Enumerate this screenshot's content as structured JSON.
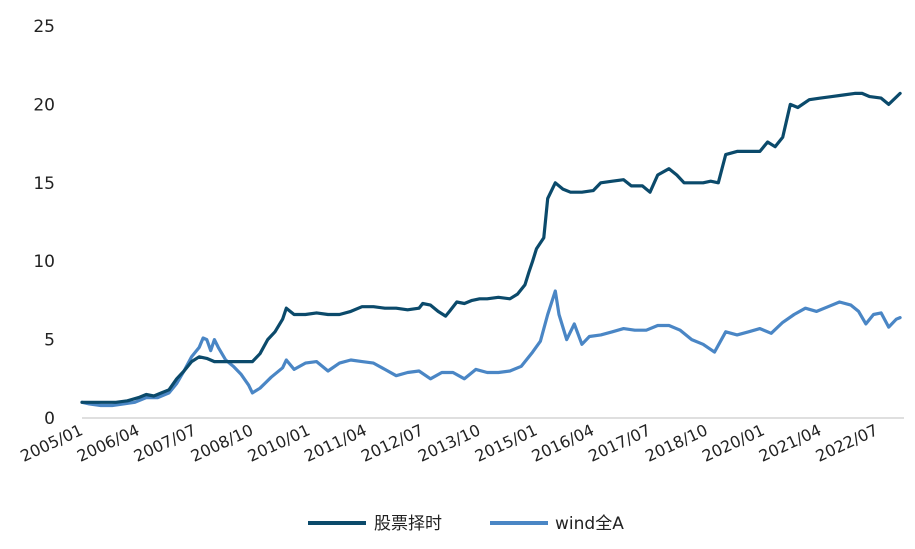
{
  "chart_data": {
    "type": "line",
    "title": "",
    "xlabel": "",
    "ylabel": "",
    "ylim": [
      0,
      25
    ],
    "yticks": [
      "0",
      "5",
      "10",
      "15",
      "20",
      "25"
    ],
    "xtick_labels": [
      "2005/01",
      "2006/04",
      "2007/07",
      "2008/10",
      "2010/01",
      "2011/04",
      "2012/07",
      "2013/10",
      "2015/01",
      "2016/04",
      "2017/07",
      "2018/10",
      "2020/01",
      "2021/04",
      "2022/07"
    ],
    "legend_position": "bottom",
    "grid": false,
    "series": [
      {
        "name": "股票择时",
        "color": "#0b4a6b",
        "points": [
          [
            "2005-01",
            1.0
          ],
          [
            "2005-06",
            1.0
          ],
          [
            "2005-10",
            1.0
          ],
          [
            "2006-01",
            1.1
          ],
          [
            "2006-04",
            1.3
          ],
          [
            "2006-06",
            1.5
          ],
          [
            "2006-08",
            1.4
          ],
          [
            "2006-10",
            1.6
          ],
          [
            "2006-12",
            1.8
          ],
          [
            "2007-02",
            2.5
          ],
          [
            "2007-04",
            3.0
          ],
          [
            "2007-06",
            3.6
          ],
          [
            "2007-08",
            3.9
          ],
          [
            "2007-10",
            3.8
          ],
          [
            "2007-12",
            3.6
          ],
          [
            "2008-02",
            3.6
          ],
          [
            "2008-05",
            3.6
          ],
          [
            "2008-08",
            3.6
          ],
          [
            "2008-10",
            3.6
          ],
          [
            "2008-12",
            4.1
          ],
          [
            "2009-02",
            5.0
          ],
          [
            "2009-04",
            5.5
          ],
          [
            "2009-06",
            6.3
          ],
          [
            "2009-07",
            7.0
          ],
          [
            "2009-09",
            6.6
          ],
          [
            "2009-12",
            6.6
          ],
          [
            "2010-03",
            6.7
          ],
          [
            "2010-06",
            6.6
          ],
          [
            "2010-09",
            6.6
          ],
          [
            "2010-12",
            6.8
          ],
          [
            "2011-03",
            7.1
          ],
          [
            "2011-06",
            7.1
          ],
          [
            "2011-09",
            7.0
          ],
          [
            "2011-12",
            7.0
          ],
          [
            "2012-03",
            6.9
          ],
          [
            "2012-06",
            7.0
          ],
          [
            "2012-07",
            7.3
          ],
          [
            "2012-09",
            7.2
          ],
          [
            "2012-11",
            6.8
          ],
          [
            "2013-01",
            6.5
          ],
          [
            "2013-02",
            6.8
          ],
          [
            "2013-04",
            7.4
          ],
          [
            "2013-06",
            7.3
          ],
          [
            "2013-08",
            7.5
          ],
          [
            "2013-10",
            7.6
          ],
          [
            "2013-12",
            7.6
          ],
          [
            "2014-03",
            7.7
          ],
          [
            "2014-06",
            7.6
          ],
          [
            "2014-08",
            7.9
          ],
          [
            "2014-10",
            8.5
          ],
          [
            "2014-11",
            9.3
          ],
          [
            "2014-12",
            10.0
          ],
          [
            "2015-01",
            10.8
          ],
          [
            "2015-03",
            11.5
          ],
          [
            "2015-04",
            14.0
          ],
          [
            "2015-06",
            15.0
          ],
          [
            "2015-08",
            14.6
          ],
          [
            "2015-10",
            14.4
          ],
          [
            "2016-01",
            14.4
          ],
          [
            "2016-04",
            14.5
          ],
          [
            "2016-06",
            15.0
          ],
          [
            "2016-09",
            15.1
          ],
          [
            "2016-12",
            15.2
          ],
          [
            "2017-02",
            14.8
          ],
          [
            "2017-05",
            14.8
          ],
          [
            "2017-07",
            14.4
          ],
          [
            "2017-09",
            15.5
          ],
          [
            "2017-12",
            15.9
          ],
          [
            "2018-02",
            15.5
          ],
          [
            "2018-04",
            15.0
          ],
          [
            "2018-07",
            15.0
          ],
          [
            "2018-09",
            15.0
          ],
          [
            "2018-11",
            15.1
          ],
          [
            "2019-01",
            15.0
          ],
          [
            "2019-03",
            16.8
          ],
          [
            "2019-06",
            17.0
          ],
          [
            "2019-09",
            17.0
          ],
          [
            "2019-12",
            17.0
          ],
          [
            "2020-02",
            17.6
          ],
          [
            "2020-04",
            17.3
          ],
          [
            "2020-06",
            17.9
          ],
          [
            "2020-08",
            20.0
          ],
          [
            "2020-10",
            19.8
          ],
          [
            "2021-01",
            20.3
          ],
          [
            "2021-04",
            20.4
          ],
          [
            "2021-07",
            20.5
          ],
          [
            "2021-10",
            20.6
          ],
          [
            "2022-01",
            20.7
          ],
          [
            "2022-03",
            20.7
          ],
          [
            "2022-05",
            20.5
          ],
          [
            "2022-08",
            20.4
          ],
          [
            "2022-10",
            20.0
          ],
          [
            "2023-01",
            20.7
          ]
        ]
      },
      {
        "name": "wind全A",
        "color": "#4a86c5",
        "points": [
          [
            "2005-01",
            1.0
          ],
          [
            "2005-03",
            0.9
          ],
          [
            "2005-06",
            0.8
          ],
          [
            "2005-09",
            0.8
          ],
          [
            "2005-12",
            0.9
          ],
          [
            "2006-03",
            1.0
          ],
          [
            "2006-06",
            1.3
          ],
          [
            "2006-09",
            1.3
          ],
          [
            "2006-12",
            1.6
          ],
          [
            "2007-02",
            2.2
          ],
          [
            "2007-04",
            3.0
          ],
          [
            "2007-06",
            3.9
          ],
          [
            "2007-08",
            4.5
          ],
          [
            "2007-09",
            5.1
          ],
          [
            "2007-10",
            5.0
          ],
          [
            "2007-11",
            4.3
          ],
          [
            "2007-12",
            5.0
          ],
          [
            "2008-01",
            4.5
          ],
          [
            "2008-03",
            3.7
          ],
          [
            "2008-05",
            3.3
          ],
          [
            "2008-07",
            2.8
          ],
          [
            "2008-09",
            2.1
          ],
          [
            "2008-10",
            1.6
          ],
          [
            "2008-12",
            1.9
          ],
          [
            "2009-03",
            2.6
          ],
          [
            "2009-06",
            3.2
          ],
          [
            "2009-07",
            3.7
          ],
          [
            "2009-09",
            3.1
          ],
          [
            "2009-12",
            3.5
          ],
          [
            "2010-03",
            3.6
          ],
          [
            "2010-06",
            3.0
          ],
          [
            "2010-09",
            3.5
          ],
          [
            "2010-12",
            3.7
          ],
          [
            "2011-03",
            3.6
          ],
          [
            "2011-06",
            3.5
          ],
          [
            "2011-09",
            3.1
          ],
          [
            "2011-12",
            2.7
          ],
          [
            "2012-03",
            2.9
          ],
          [
            "2012-06",
            3.0
          ],
          [
            "2012-09",
            2.5
          ],
          [
            "2012-12",
            2.9
          ],
          [
            "2013-03",
            2.9
          ],
          [
            "2013-06",
            2.5
          ],
          [
            "2013-09",
            3.1
          ],
          [
            "2013-12",
            2.9
          ],
          [
            "2014-03",
            2.9
          ],
          [
            "2014-06",
            3.0
          ],
          [
            "2014-09",
            3.3
          ],
          [
            "2014-12",
            4.2
          ],
          [
            "2015-02",
            4.9
          ],
          [
            "2015-04",
            6.6
          ],
          [
            "2015-06",
            8.1
          ],
          [
            "2015-07",
            6.6
          ],
          [
            "2015-09",
            5.0
          ],
          [
            "2015-11",
            6.0
          ],
          [
            "2016-01",
            4.7
          ],
          [
            "2016-03",
            5.2
          ],
          [
            "2016-06",
            5.3
          ],
          [
            "2016-09",
            5.5
          ],
          [
            "2016-12",
            5.7
          ],
          [
            "2017-03",
            5.6
          ],
          [
            "2017-06",
            5.6
          ],
          [
            "2017-09",
            5.9
          ],
          [
            "2017-12",
            5.9
          ],
          [
            "2018-03",
            5.6
          ],
          [
            "2018-06",
            5.0
          ],
          [
            "2018-09",
            4.7
          ],
          [
            "2018-12",
            4.2
          ],
          [
            "2019-03",
            5.5
          ],
          [
            "2019-06",
            5.3
          ],
          [
            "2019-09",
            5.5
          ],
          [
            "2019-12",
            5.7
          ],
          [
            "2020-03",
            5.4
          ],
          [
            "2020-06",
            6.1
          ],
          [
            "2020-09",
            6.6
          ],
          [
            "2020-12",
            7.0
          ],
          [
            "2021-03",
            6.8
          ],
          [
            "2021-06",
            7.1
          ],
          [
            "2021-09",
            7.4
          ],
          [
            "2021-12",
            7.2
          ],
          [
            "2022-02",
            6.8
          ],
          [
            "2022-04",
            6.0
          ],
          [
            "2022-06",
            6.6
          ],
          [
            "2022-08",
            6.7
          ],
          [
            "2022-10",
            5.8
          ],
          [
            "2022-12",
            6.3
          ],
          [
            "2023-01",
            6.4
          ]
        ]
      }
    ]
  }
}
